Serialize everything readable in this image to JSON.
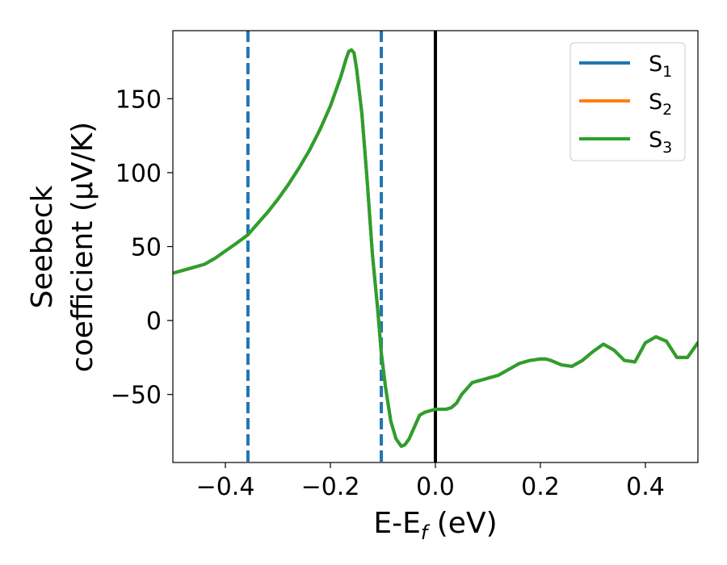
{
  "chart_data": {
    "type": "line",
    "xlabel": {
      "main": "E-E",
      "sub": "f",
      "tail": " (eV)"
    },
    "ylabel": {
      "line1": "Seebeck",
      "line2": "coefficient  (μV/K)"
    },
    "xlim": [
      -0.5,
      0.5
    ],
    "ylim": [
      -96,
      196
    ],
    "xticks": [
      -0.4,
      -0.2,
      0.0,
      0.2,
      0.4
    ],
    "xtick_labels": [
      "−0.4",
      "−0.2",
      "0.0",
      "0.2",
      "0.4"
    ],
    "yticks": [
      -50,
      0,
      50,
      100,
      150
    ],
    "ytick_labels": [
      "−50",
      "0",
      "50",
      "100",
      "150"
    ],
    "grid": false,
    "legend_position": "top-right",
    "vlines": [
      {
        "x": -0.357,
        "style": "dashed",
        "color": "#1f77b4"
      },
      {
        "x": -0.103,
        "style": "dashed",
        "color": "#1f77b4"
      },
      {
        "x": 0.0,
        "style": "solid",
        "color": "#000000"
      }
    ],
    "x": [
      -0.5,
      -0.48,
      -0.46,
      -0.44,
      -0.42,
      -0.4,
      -0.38,
      -0.357,
      -0.34,
      -0.32,
      -0.3,
      -0.28,
      -0.26,
      -0.24,
      -0.22,
      -0.2,
      -0.19,
      -0.18,
      -0.17,
      -0.165,
      -0.16,
      -0.155,
      -0.15,
      -0.14,
      -0.13,
      -0.12,
      -0.11,
      -0.103,
      -0.095,
      -0.085,
      -0.075,
      -0.065,
      -0.058,
      -0.05,
      -0.04,
      -0.03,
      -0.02,
      -0.01,
      0.0,
      0.01,
      0.02,
      0.03,
      0.04,
      0.05,
      0.06,
      0.07,
      0.08,
      0.09,
      0.1,
      0.12,
      0.14,
      0.16,
      0.18,
      0.2,
      0.21,
      0.22,
      0.24,
      0.26,
      0.28,
      0.3,
      0.32,
      0.34,
      0.36,
      0.38,
      0.4,
      0.42,
      0.44,
      0.46,
      0.48,
      0.5
    ],
    "series": [
      {
        "name": "S",
        "name_sub": "1",
        "color": "#1f77b4",
        "values": [
          32,
          34,
          36,
          38,
          42,
          47,
          52,
          58,
          65,
          73,
          82,
          92,
          103,
          115,
          129,
          145,
          155,
          165,
          177,
          182,
          183,
          181,
          170,
          140,
          95,
          45,
          8,
          -22,
          -45,
          -68,
          -80,
          -85,
          -84,
          -80,
          -72,
          -64,
          -62,
          -61,
          -60,
          -60,
          -60,
          -59,
          -56,
          -50,
          -46,
          -42,
          -41,
          -40,
          -39,
          -37,
          -33,
          -29,
          -27,
          -26,
          -26,
          -27,
          -30,
          -31,
          -27,
          -21,
          -16,
          -20,
          -27,
          -28,
          -15,
          -11,
          -14,
          -25,
          -25,
          -15
        ]
      },
      {
        "name": "S",
        "name_sub": "2",
        "color": "#ff7f0e",
        "values": [
          32,
          34,
          36,
          38,
          42,
          47,
          52,
          58,
          65,
          73,
          82,
          92,
          103,
          115,
          129,
          145,
          155,
          165,
          177,
          182,
          183,
          181,
          170,
          140,
          95,
          45,
          8,
          -22,
          -45,
          -68,
          -80,
          -85,
          -84,
          -80,
          -72,
          -64,
          -62,
          -61,
          -60,
          -60,
          -60,
          -59,
          -56,
          -50,
          -46,
          -42,
          -41,
          -40,
          -39,
          -37,
          -33,
          -29,
          -27,
          -26,
          -26,
          -27,
          -30,
          -31,
          -27,
          -21,
          -16,
          -20,
          -27,
          -28,
          -15,
          -11,
          -14,
          -25,
          -25,
          -15
        ]
      },
      {
        "name": "S",
        "name_sub": "3",
        "color": "#2ca02c",
        "values": [
          32,
          34,
          36,
          38,
          42,
          47,
          52,
          58,
          65,
          73,
          82,
          92,
          103,
          115,
          129,
          145,
          155,
          165,
          177,
          182,
          183,
          181,
          170,
          140,
          95,
          45,
          8,
          -22,
          -45,
          -68,
          -80,
          -85,
          -84,
          -80,
          -72,
          -64,
          -62,
          -61,
          -60,
          -60,
          -60,
          -59,
          -56,
          -50,
          -46,
          -42,
          -41,
          -40,
          -39,
          -37,
          -33,
          -29,
          -27,
          -26,
          -26,
          -27,
          -30,
          -31,
          -27,
          -21,
          -16,
          -20,
          -27,
          -28,
          -15,
          -11,
          -14,
          -25,
          -25,
          -15
        ]
      }
    ]
  }
}
